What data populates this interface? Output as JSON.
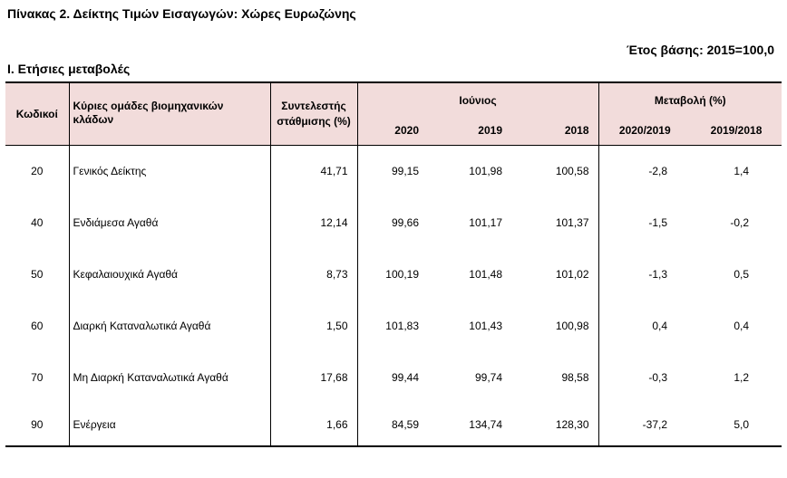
{
  "document": {
    "title": "Πίνακας 2. Δείκτης Τιμών Εισαγωγών: Χώρες Ευρωζώνης",
    "base_year": "Έτος βάσης: 2015=100,0",
    "section": "Ι. Ετήσιες μεταβολές"
  },
  "table": {
    "headers": {
      "code": "Κωδικοί",
      "group": "Κύριες ομάδες βιομηχανικών κλάδων",
      "weight": "Συντελεστής στάθμισης (%)",
      "month": "Ιούνιος",
      "change": "Μεταβολή (%)",
      "years": [
        "2020",
        "2019",
        "2018"
      ],
      "changes": [
        "2020/2019",
        "2019/2018"
      ]
    },
    "rows": [
      {
        "code": "20",
        "name": "Γενικός Δείκτης",
        "weight": "41,71",
        "y2020": "99,15",
        "y2019": "101,98",
        "y2018": "100,58",
        "c1": "-2,8",
        "c2": "1,4"
      },
      {
        "code": "40",
        "name": "Ενδιάμεσα Αγαθά",
        "weight": "12,14",
        "y2020": "99,66",
        "y2019": "101,17",
        "y2018": "101,37",
        "c1": "-1,5",
        "c2": "-0,2"
      },
      {
        "code": "50",
        "name": "Κεφαλαιουχικά Αγαθά",
        "weight": "8,73",
        "y2020": "100,19",
        "y2019": "101,48",
        "y2018": "101,02",
        "c1": "-1,3",
        "c2": "0,5"
      },
      {
        "code": "60",
        "name": "Διαρκή Καταναλωτικά Αγαθά",
        "weight": "1,50",
        "y2020": "101,83",
        "y2019": "101,43",
        "y2018": "100,98",
        "c1": "0,4",
        "c2": "0,4"
      },
      {
        "code": "70",
        "name": "Μη Διαρκή Καταναλωτικά Αγαθά",
        "weight": "17,68",
        "y2020": "99,44",
        "y2019": "99,74",
        "y2018": "98,58",
        "c1": "-0,3",
        "c2": "1,2"
      },
      {
        "code": "90",
        "name": "Ενέργεια",
        "weight": "1,66",
        "y2020": "84,59",
        "y2019": "134,74",
        "y2018": "128,30",
        "c1": "-37,2",
        "c2": "5,0"
      }
    ]
  },
  "colors": {
    "header_background": "#f2dcdb",
    "rule": "#000000"
  }
}
